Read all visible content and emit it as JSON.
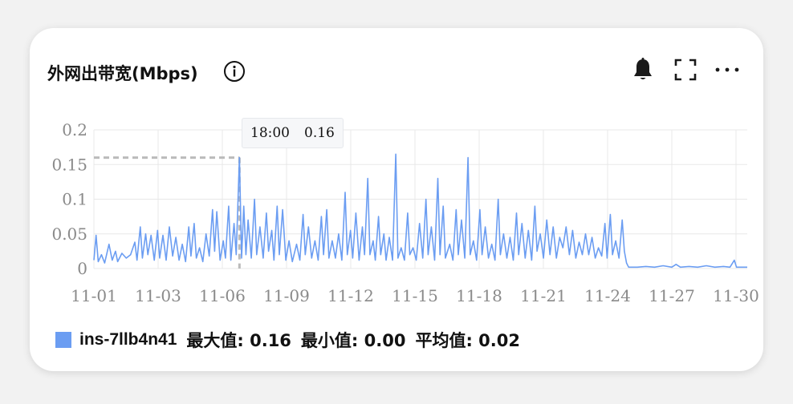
{
  "header": {
    "title": "外网出带宽(Mbps)"
  },
  "icons": {
    "info": "info-icon",
    "bell": "bell-icon",
    "fullscreen": "fullscreen-icon",
    "more": "more-icon"
  },
  "tooltip": {
    "time": "18:00",
    "value": "0.16"
  },
  "legend": {
    "name": "ins-7llb4n41",
    "max_label": "最大值: 0.16",
    "min_label": "最小值: 0.00",
    "avg_label": "平均值: 0.02"
  },
  "colors": {
    "series": "#6b9df2",
    "grid": "#e8e8e8",
    "axis_text": "#8a8a8a",
    "crosshair": "#bbbbbb"
  },
  "chart_data": {
    "type": "line",
    "ylim": [
      0,
      0.2
    ],
    "yticks": [
      "0",
      "0.05",
      "0.1",
      "0.15",
      "0.2"
    ],
    "xticks": [
      "11-01",
      "11-03",
      "11-06",
      "11-09",
      "11-12",
      "11-15",
      "11-18",
      "11-21",
      "11-24",
      "11-27",
      "11-30"
    ],
    "xlim_days": [
      1,
      31.3
    ],
    "grid": true,
    "legend_position": "bottom-left",
    "series": [
      {
        "name": "ins-7llb4n41",
        "points": [
          [
            1.0,
            0.012
          ],
          [
            1.1,
            0.048
          ],
          [
            1.2,
            0.01
          ],
          [
            1.35,
            0.02
          ],
          [
            1.5,
            0.008
          ],
          [
            1.7,
            0.035
          ],
          [
            1.85,
            0.012
          ],
          [
            2.0,
            0.025
          ],
          [
            2.1,
            0.01
          ],
          [
            2.3,
            0.022
          ],
          [
            2.5,
            0.015
          ],
          [
            2.7,
            0.02
          ],
          [
            2.9,
            0.038
          ],
          [
            3.0,
            0.012
          ],
          [
            3.15,
            0.06
          ],
          [
            3.25,
            0.015
          ],
          [
            3.4,
            0.05
          ],
          [
            3.5,
            0.02
          ],
          [
            3.65,
            0.048
          ],
          [
            3.8,
            0.012
          ],
          [
            3.95,
            0.055
          ],
          [
            4.05,
            0.015
          ],
          [
            4.2,
            0.048
          ],
          [
            4.35,
            0.012
          ],
          [
            4.5,
            0.06
          ],
          [
            4.65,
            0.018
          ],
          [
            4.8,
            0.045
          ],
          [
            4.95,
            0.012
          ],
          [
            5.1,
            0.035
          ],
          [
            5.25,
            0.01
          ],
          [
            5.4,
            0.06
          ],
          [
            5.5,
            0.018
          ],
          [
            5.65,
            0.065
          ],
          [
            5.75,
            0.015
          ],
          [
            5.9,
            0.03
          ],
          [
            6.05,
            0.01
          ],
          [
            6.2,
            0.05
          ],
          [
            6.35,
            0.018
          ],
          [
            6.5,
            0.085
          ],
          [
            6.6,
            0.025
          ],
          [
            6.7,
            0.082
          ],
          [
            6.85,
            0.012
          ],
          [
            7.0,
            0.04
          ],
          [
            7.1,
            0.015
          ],
          [
            7.25,
            0.09
          ],
          [
            7.35,
            0.012
          ],
          [
            7.5,
            0.065
          ],
          [
            7.6,
            0.02
          ],
          [
            7.75,
            0.16
          ],
          [
            7.85,
            0.015
          ],
          [
            7.95,
            0.09
          ],
          [
            8.05,
            0.02
          ],
          [
            8.15,
            0.07
          ],
          [
            8.3,
            0.015
          ],
          [
            8.45,
            0.1
          ],
          [
            8.55,
            0.02
          ],
          [
            8.7,
            0.06
          ],
          [
            8.85,
            0.015
          ],
          [
            9.0,
            0.08
          ],
          [
            9.1,
            0.025
          ],
          [
            9.25,
            0.055
          ],
          [
            9.35,
            0.012
          ],
          [
            9.5,
            0.09
          ],
          [
            9.6,
            0.02
          ],
          [
            9.75,
            0.085
          ],
          [
            9.9,
            0.012
          ],
          [
            10.05,
            0.04
          ],
          [
            10.2,
            0.01
          ],
          [
            10.4,
            0.035
          ],
          [
            10.55,
            0.012
          ],
          [
            10.7,
            0.078
          ],
          [
            10.8,
            0.02
          ],
          [
            10.95,
            0.06
          ],
          [
            11.1,
            0.015
          ],
          [
            11.25,
            0.04
          ],
          [
            11.4,
            0.012
          ],
          [
            11.55,
            0.075
          ],
          [
            11.65,
            0.02
          ],
          [
            11.8,
            0.085
          ],
          [
            11.9,
            0.015
          ],
          [
            12.05,
            0.04
          ],
          [
            12.2,
            0.015
          ],
          [
            12.35,
            0.05
          ],
          [
            12.5,
            0.012
          ],
          [
            12.65,
            0.11
          ],
          [
            12.75,
            0.02
          ],
          [
            12.9,
            0.055
          ],
          [
            13.0,
            0.015
          ],
          [
            13.15,
            0.08
          ],
          [
            13.3,
            0.012
          ],
          [
            13.45,
            0.06
          ],
          [
            13.55,
            0.02
          ],
          [
            13.7,
            0.13
          ],
          [
            13.8,
            0.02
          ],
          [
            13.95,
            0.04
          ],
          [
            14.05,
            0.012
          ],
          [
            14.2,
            0.075
          ],
          [
            14.3,
            0.02
          ],
          [
            14.45,
            0.05
          ],
          [
            14.55,
            0.012
          ],
          [
            14.7,
            0.045
          ],
          [
            14.85,
            0.012
          ],
          [
            15.0,
            0.165
          ],
          [
            15.1,
            0.015
          ],
          [
            15.25,
            0.03
          ],
          [
            15.4,
            0.012
          ],
          [
            15.55,
            0.08
          ],
          [
            15.65,
            0.02
          ],
          [
            15.8,
            0.03
          ],
          [
            15.95,
            0.012
          ],
          [
            16.1,
            0.065
          ],
          [
            16.25,
            0.015
          ],
          [
            16.4,
            0.1
          ],
          [
            16.5,
            0.02
          ],
          [
            16.65,
            0.06
          ],
          [
            16.8,
            0.012
          ],
          [
            16.95,
            0.13
          ],
          [
            17.05,
            0.02
          ],
          [
            17.2,
            0.09
          ],
          [
            17.3,
            0.015
          ],
          [
            17.5,
            0.035
          ],
          [
            17.65,
            0.012
          ],
          [
            17.8,
            0.085
          ],
          [
            17.9,
            0.02
          ],
          [
            18.05,
            0.07
          ],
          [
            18.2,
            0.015
          ],
          [
            18.35,
            0.16
          ],
          [
            18.45,
            0.02
          ],
          [
            18.6,
            0.04
          ],
          [
            18.75,
            0.012
          ],
          [
            18.9,
            0.085
          ],
          [
            19.0,
            0.02
          ],
          [
            19.15,
            0.06
          ],
          [
            19.3,
            0.015
          ],
          [
            19.45,
            0.035
          ],
          [
            19.6,
            0.012
          ],
          [
            19.75,
            0.1
          ],
          [
            19.85,
            0.02
          ],
          [
            20.0,
            0.05
          ],
          [
            20.15,
            0.015
          ],
          [
            20.3,
            0.045
          ],
          [
            20.45,
            0.012
          ],
          [
            20.6,
            0.08
          ],
          [
            20.7,
            0.02
          ],
          [
            20.85,
            0.065
          ],
          [
            21.0,
            0.015
          ],
          [
            21.15,
            0.055
          ],
          [
            21.3,
            0.012
          ],
          [
            21.45,
            0.09
          ],
          [
            21.55,
            0.025
          ],
          [
            21.7,
            0.05
          ],
          [
            21.85,
            0.015
          ],
          [
            22.0,
            0.07
          ],
          [
            22.15,
            0.02
          ],
          [
            22.3,
            0.06
          ],
          [
            22.45,
            0.015
          ],
          [
            22.6,
            0.045
          ],
          [
            22.75,
            0.03
          ],
          [
            22.9,
            0.06
          ],
          [
            23.05,
            0.02
          ],
          [
            23.2,
            0.055
          ],
          [
            23.35,
            0.015
          ],
          [
            23.5,
            0.038
          ],
          [
            23.65,
            0.02
          ],
          [
            23.8,
            0.05
          ],
          [
            23.95,
            0.02
          ],
          [
            24.1,
            0.045
          ],
          [
            24.25,
            0.015
          ],
          [
            24.4,
            0.03
          ],
          [
            24.55,
            0.018
          ],
          [
            24.7,
            0.065
          ],
          [
            24.8,
            0.015
          ],
          [
            24.95,
            0.078
          ],
          [
            25.05,
            0.02
          ],
          [
            25.2,
            0.04
          ],
          [
            25.35,
            0.015
          ],
          [
            25.5,
            0.07
          ],
          [
            25.6,
            0.025
          ],
          [
            25.7,
            0.008
          ],
          [
            25.8,
            0.002
          ],
          [
            26.2,
            0.002
          ],
          [
            26.6,
            0.003
          ],
          [
            27.0,
            0.002
          ],
          [
            27.4,
            0.004
          ],
          [
            27.8,
            0.002
          ],
          [
            28.0,
            0.006
          ],
          [
            28.2,
            0.002
          ],
          [
            28.6,
            0.003
          ],
          [
            29.0,
            0.002
          ],
          [
            29.4,
            0.004
          ],
          [
            29.8,
            0.002
          ],
          [
            30.2,
            0.003
          ],
          [
            30.5,
            0.002
          ],
          [
            30.7,
            0.012
          ],
          [
            30.8,
            0.002
          ],
          [
            31.3,
            0.002
          ]
        ]
      }
    ],
    "highlight": {
      "x": 7.75,
      "y": 0.16
    }
  }
}
